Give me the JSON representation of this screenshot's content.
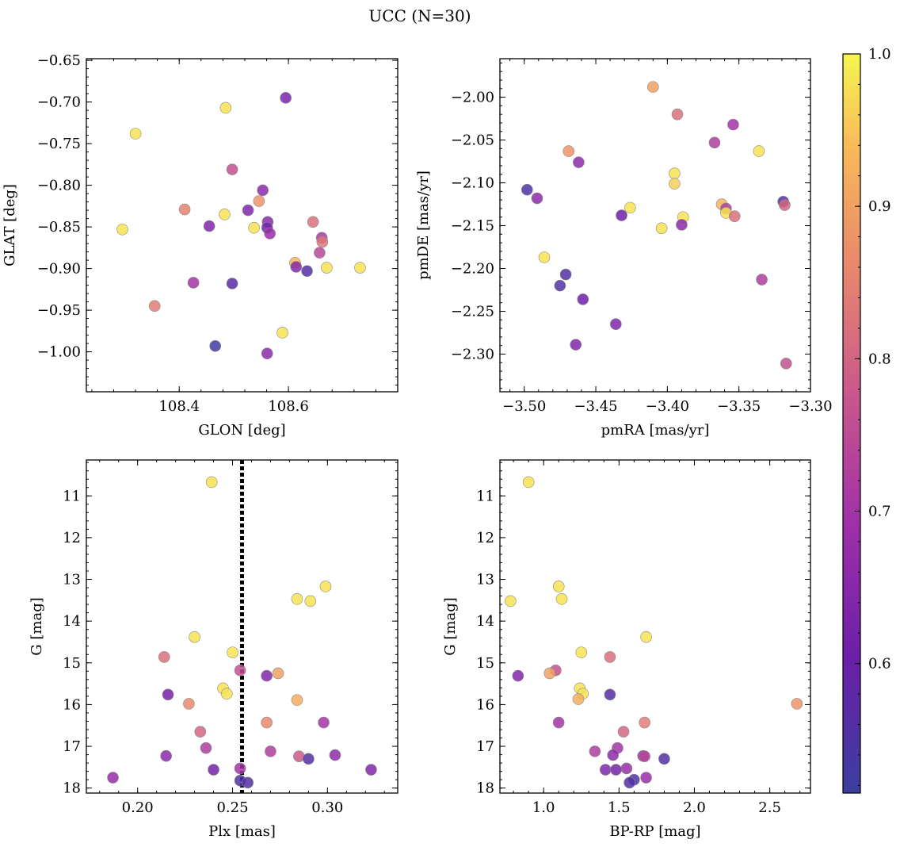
{
  "figure": {
    "title": "UCC (N=30)"
  },
  "colorbar": {
    "range": [
      0.515,
      1.0
    ],
    "ticks": [
      0.6,
      0.7,
      0.8,
      0.9,
      1.0
    ],
    "tick_labels": [
      "0.6",
      "0.7",
      "0.8",
      "0.9",
      "1.0"
    ],
    "colormap": "plasma"
  },
  "chart_data": [
    {
      "type": "scatter",
      "id": "glon-glat",
      "title": "",
      "xlabel": "GLON [deg]",
      "ylabel": "GLAT [deg]",
      "xlim": [
        108.23,
        108.8
      ],
      "ylim": [
        -1.048,
        -0.648
      ],
      "y_inverted": false,
      "xticks": [
        108.4,
        108.6
      ],
      "xtick_labels": [
        "108.4",
        "108.6"
      ],
      "yticks": [
        -0.65,
        -0.7,
        -0.75,
        -0.8,
        -0.85,
        -0.9,
        -0.95,
        -1.0
      ],
      "ytick_labels": [
        "−0.65",
        "−0.70",
        "−0.75",
        "−0.80",
        "−0.85",
        "−0.90",
        "−0.95",
        "−1.00"
      ],
      "points": [
        {
          "x": 108.595,
          "y": -0.695,
          "c": 0.63
        },
        {
          "x": 108.485,
          "y": -0.707,
          "c": 0.98
        },
        {
          "x": 108.32,
          "y": -0.738,
          "c": 0.98
        },
        {
          "x": 108.497,
          "y": -0.781,
          "c": 0.76
        },
        {
          "x": 108.553,
          "y": -0.806,
          "c": 0.66
        },
        {
          "x": 108.546,
          "y": -0.819,
          "c": 0.88
        },
        {
          "x": 108.526,
          "y": -0.83,
          "c": 0.64
        },
        {
          "x": 108.41,
          "y": -0.829,
          "c": 0.85
        },
        {
          "x": 108.483,
          "y": -0.835,
          "c": 0.98
        },
        {
          "x": 108.562,
          "y": -0.844,
          "c": 0.66
        },
        {
          "x": 108.645,
          "y": -0.844,
          "c": 0.82
        },
        {
          "x": 108.455,
          "y": -0.849,
          "c": 0.64
        },
        {
          "x": 108.537,
          "y": -0.851,
          "c": 0.98
        },
        {
          "x": 108.561,
          "y": -0.851,
          "c": 0.62
        },
        {
          "x": 108.296,
          "y": -0.853,
          "c": 0.98
        },
        {
          "x": 108.566,
          "y": -0.858,
          "c": 0.68
        },
        {
          "x": 108.661,
          "y": -0.863,
          "c": 0.71
        },
        {
          "x": 108.662,
          "y": -0.868,
          "c": 0.83
        },
        {
          "x": 108.657,
          "y": -0.881,
          "c": 0.74
        },
        {
          "x": 108.612,
          "y": -0.893,
          "c": 0.93
        },
        {
          "x": 108.614,
          "y": -0.898,
          "c": 0.65
        },
        {
          "x": 108.67,
          "y": -0.899,
          "c": 0.98
        },
        {
          "x": 108.731,
          "y": -0.899,
          "c": 0.98
        },
        {
          "x": 108.634,
          "y": -0.903,
          "c": 0.56
        },
        {
          "x": 108.426,
          "y": -0.917,
          "c": 0.7
        },
        {
          "x": 108.497,
          "y": -0.918,
          "c": 0.57
        },
        {
          "x": 108.355,
          "y": -0.945,
          "c": 0.84
        },
        {
          "x": 108.589,
          "y": -0.977,
          "c": 0.98
        },
        {
          "x": 108.466,
          "y": -0.993,
          "c": 0.53
        },
        {
          "x": 108.561,
          "y": -1.002,
          "c": 0.66
        }
      ]
    },
    {
      "type": "scatter",
      "id": "pmra-pmde",
      "title": "",
      "xlabel": "pmRA [mas/yr]",
      "ylabel": "pmDE [mas/yr]",
      "xlim": [
        -3.517,
        -3.3
      ],
      "ylim": [
        -2.344,
        -1.955
      ],
      "y_inverted": false,
      "xticks": [
        -3.5,
        -3.45,
        -3.4,
        -3.35,
        -3.3
      ],
      "xtick_labels": [
        "−3.50",
        "−3.45",
        "−3.40",
        "−3.35",
        "−3.30"
      ],
      "yticks": [
        -2.0,
        -2.05,
        -2.1,
        -2.15,
        -2.2,
        -2.25,
        -2.3
      ],
      "ytick_labels": [
        "−2.00",
        "−2.05",
        "−2.10",
        "−2.15",
        "−2.20",
        "−2.25",
        "−2.30"
      ],
      "points": [
        {
          "x": -3.41,
          "y": -1.988,
          "c": 0.9
        },
        {
          "x": -3.393,
          "y": -2.02,
          "c": 0.82
        },
        {
          "x": -3.354,
          "y": -2.032,
          "c": 0.7
        },
        {
          "x": -3.367,
          "y": -2.053,
          "c": 0.72
        },
        {
          "x": -3.336,
          "y": -2.063,
          "c": 0.98
        },
        {
          "x": -3.469,
          "y": -2.063,
          "c": 0.88
        },
        {
          "x": -3.462,
          "y": -2.076,
          "c": 0.66
        },
        {
          "x": -3.395,
          "y": -2.089,
          "c": 0.98
        },
        {
          "x": -3.395,
          "y": -2.101,
          "c": 0.96
        },
        {
          "x": -3.498,
          "y": -2.108,
          "c": 0.55
        },
        {
          "x": -3.491,
          "y": -2.118,
          "c": 0.66
        },
        {
          "x": -3.319,
          "y": -2.122,
          "c": 0.56
        },
        {
          "x": -3.318,
          "y": -2.126,
          "c": 0.8
        },
        {
          "x": -3.362,
          "y": -2.125,
          "c": 0.93
        },
        {
          "x": -3.426,
          "y": -2.129,
          "c": 0.98
        },
        {
          "x": -3.359,
          "y": -2.13,
          "c": 0.72
        },
        {
          "x": -3.359,
          "y": -2.135,
          "c": 0.98
        },
        {
          "x": -3.432,
          "y": -2.138,
          "c": 0.61
        },
        {
          "x": -3.353,
          "y": -2.139,
          "c": 0.82
        },
        {
          "x": -3.389,
          "y": -2.14,
          "c": 0.98
        },
        {
          "x": -3.39,
          "y": -2.149,
          "c": 0.66
        },
        {
          "x": -3.404,
          "y": -2.153,
          "c": 0.98
        },
        {
          "x": -3.486,
          "y": -2.187,
          "c": 0.98
        },
        {
          "x": -3.471,
          "y": -2.207,
          "c": 0.56
        },
        {
          "x": -3.334,
          "y": -2.213,
          "c": 0.72
        },
        {
          "x": -3.475,
          "y": -2.22,
          "c": 0.56
        },
        {
          "x": -3.459,
          "y": -2.236,
          "c": 0.61
        },
        {
          "x": -3.436,
          "y": -2.265,
          "c": 0.64
        },
        {
          "x": -3.464,
          "y": -2.289,
          "c": 0.64
        },
        {
          "x": -3.317,
          "y": -2.311,
          "c": 0.76
        }
      ]
    },
    {
      "type": "scatter",
      "id": "plx-g",
      "title": "",
      "xlabel": "Plx [mas]",
      "ylabel": "G [mag]",
      "xlim": [
        0.173,
        0.337
      ],
      "ylim": [
        10.14,
        18.12
      ],
      "y_inverted": true,
      "xticks": [
        0.2,
        0.25,
        0.3
      ],
      "xtick_labels": [
        "0.20",
        "0.25",
        "0.30"
      ],
      "yticks": [
        11,
        12,
        13,
        14,
        15,
        16,
        17,
        18
      ],
      "ytick_labels": [
        "11",
        "12",
        "13",
        "14",
        "15",
        "16",
        "17",
        "18"
      ],
      "vline": 0.255,
      "points": [
        {
          "x": 0.239,
          "y": 10.67,
          "c": 0.98
        },
        {
          "x": 0.299,
          "y": 13.17,
          "c": 0.98
        },
        {
          "x": 0.284,
          "y": 13.47,
          "c": 0.98
        },
        {
          "x": 0.291,
          "y": 13.52,
          "c": 0.98
        },
        {
          "x": 0.23,
          "y": 14.38,
          "c": 0.98
        },
        {
          "x": 0.25,
          "y": 14.75,
          "c": 0.98
        },
        {
          "x": 0.214,
          "y": 14.86,
          "c": 0.82
        },
        {
          "x": 0.254,
          "y": 15.18,
          "c": 0.76
        },
        {
          "x": 0.274,
          "y": 15.25,
          "c": 0.9
        },
        {
          "x": 0.268,
          "y": 15.31,
          "c": 0.64
        },
        {
          "x": 0.245,
          "y": 15.61,
          "c": 0.98
        },
        {
          "x": 0.247,
          "y": 15.74,
          "c": 0.98
        },
        {
          "x": 0.216,
          "y": 15.76,
          "c": 0.62
        },
        {
          "x": 0.284,
          "y": 15.89,
          "c": 0.92
        },
        {
          "x": 0.227,
          "y": 15.98,
          "c": 0.86
        },
        {
          "x": 0.268,
          "y": 16.43,
          "c": 0.86
        },
        {
          "x": 0.298,
          "y": 16.43,
          "c": 0.7
        },
        {
          "x": 0.233,
          "y": 16.65,
          "c": 0.8
        },
        {
          "x": 0.236,
          "y": 17.04,
          "c": 0.72
        },
        {
          "x": 0.27,
          "y": 17.12,
          "c": 0.72
        },
        {
          "x": 0.304,
          "y": 17.21,
          "c": 0.66
        },
        {
          "x": 0.215,
          "y": 17.23,
          "c": 0.66
        },
        {
          "x": 0.285,
          "y": 17.24,
          "c": 0.78
        },
        {
          "x": 0.29,
          "y": 17.3,
          "c": 0.56
        },
        {
          "x": 0.254,
          "y": 17.53,
          "c": 0.7
        },
        {
          "x": 0.24,
          "y": 17.56,
          "c": 0.62
        },
        {
          "x": 0.323,
          "y": 17.56,
          "c": 0.64
        },
        {
          "x": 0.187,
          "y": 17.75,
          "c": 0.68
        },
        {
          "x": 0.254,
          "y": 17.82,
          "c": 0.55
        },
        {
          "x": 0.258,
          "y": 17.87,
          "c": 0.56
        }
      ]
    },
    {
      "type": "scatter",
      "id": "bprp-g",
      "title": "",
      "xlabel": "BP-RP [mag]",
      "ylabel": "G [mag]",
      "xlim": [
        0.71,
        2.77
      ],
      "ylim": [
        10.14,
        18.12
      ],
      "y_inverted": true,
      "xticks": [
        1.0,
        1.5,
        2.0,
        2.5
      ],
      "xtick_labels": [
        "1.0",
        "1.5",
        "2.0",
        "2.5"
      ],
      "yticks": [
        11,
        12,
        13,
        14,
        15,
        16,
        17,
        18
      ],
      "ytick_labels": [
        "11",
        "12",
        "13",
        "14",
        "15",
        "16",
        "17",
        "18"
      ],
      "points": [
        {
          "x": 0.9,
          "y": 10.67,
          "c": 0.98
        },
        {
          "x": 1.1,
          "y": 13.17,
          "c": 0.98
        },
        {
          "x": 1.12,
          "y": 13.47,
          "c": 0.98
        },
        {
          "x": 0.78,
          "y": 13.52,
          "c": 0.98
        },
        {
          "x": 1.68,
          "y": 14.38,
          "c": 0.98
        },
        {
          "x": 1.25,
          "y": 14.75,
          "c": 0.98
        },
        {
          "x": 1.44,
          "y": 14.86,
          "c": 0.82
        },
        {
          "x": 1.08,
          "y": 15.18,
          "c": 0.76
        },
        {
          "x": 1.04,
          "y": 15.25,
          "c": 0.9
        },
        {
          "x": 0.83,
          "y": 15.31,
          "c": 0.64
        },
        {
          "x": 1.24,
          "y": 15.61,
          "c": 0.98
        },
        {
          "x": 1.26,
          "y": 15.74,
          "c": 0.98
        },
        {
          "x": 1.44,
          "y": 15.76,
          "c": 0.56
        },
        {
          "x": 1.23,
          "y": 15.87,
          "c": 0.92
        },
        {
          "x": 2.68,
          "y": 15.98,
          "c": 0.88
        },
        {
          "x": 1.1,
          "y": 16.43,
          "c": 0.7
        },
        {
          "x": 1.67,
          "y": 16.43,
          "c": 0.84
        },
        {
          "x": 1.53,
          "y": 16.65,
          "c": 0.8
        },
        {
          "x": 1.49,
          "y": 17.04,
          "c": 0.7
        },
        {
          "x": 1.34,
          "y": 17.12,
          "c": 0.72
        },
        {
          "x": 1.46,
          "y": 17.21,
          "c": 0.66
        },
        {
          "x": 1.66,
          "y": 17.23,
          "c": 0.66
        },
        {
          "x": 1.67,
          "y": 17.24,
          "c": 0.74
        },
        {
          "x": 1.8,
          "y": 17.3,
          "c": 0.56
        },
        {
          "x": 1.55,
          "y": 17.53,
          "c": 0.68
        },
        {
          "x": 1.41,
          "y": 17.56,
          "c": 0.64
        },
        {
          "x": 1.48,
          "y": 17.56,
          "c": 0.62
        },
        {
          "x": 1.68,
          "y": 17.75,
          "c": 0.68
        },
        {
          "x": 1.6,
          "y": 17.8,
          "c": 0.55
        },
        {
          "x": 1.57,
          "y": 17.87,
          "c": 0.56
        }
      ]
    }
  ]
}
